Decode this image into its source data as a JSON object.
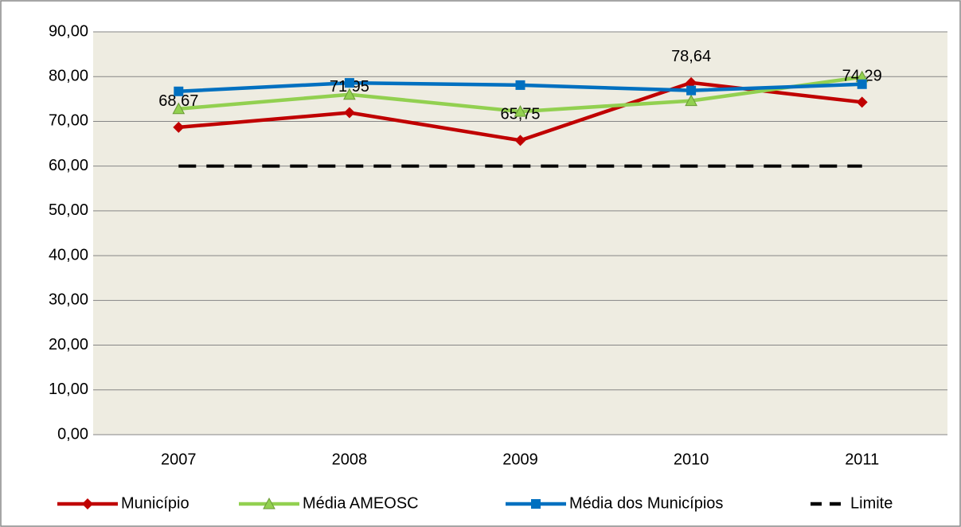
{
  "chart_data": {
    "type": "line",
    "categories": [
      "2007",
      "2008",
      "2009",
      "2010",
      "2011"
    ],
    "series": [
      {
        "name": "Município",
        "color": "#c00000",
        "marker": "diamond",
        "values": [
          68.67,
          71.95,
          65.75,
          78.64,
          74.29
        ],
        "value_labels": [
          "68,67",
          "71,95",
          "65,75",
          "78,64",
          "74,29"
        ]
      },
      {
        "name": "Média AMEOSC",
        "color": "#92d050",
        "marker": "triangle",
        "values": [
          72.8,
          76.0,
          72.2,
          74.6,
          79.9
        ]
      },
      {
        "name": "Média dos Municípios",
        "color": "#0070c0",
        "marker": "square",
        "values": [
          76.7,
          78.6,
          78.1,
          76.9,
          78.3
        ]
      },
      {
        "name": "Limite",
        "color": "#000000",
        "dashed": true,
        "values": [
          60,
          60,
          60,
          60,
          60
        ]
      }
    ],
    "ylim": [
      0,
      90
    ],
    "yticks": [
      {
        "value": 0,
        "label": "0,00"
      },
      {
        "value": 10,
        "label": "10,00"
      },
      {
        "value": 20,
        "label": "20,00"
      },
      {
        "value": 30,
        "label": "30,00"
      },
      {
        "value": 40,
        "label": "40,00"
      },
      {
        "value": 50,
        "label": "50,00"
      },
      {
        "value": 60,
        "label": "60,00"
      },
      {
        "value": 70,
        "label": "70,00"
      },
      {
        "value": 80,
        "label": "80,00"
      },
      {
        "value": 90,
        "label": "90,00"
      }
    ],
    "grid": true,
    "legend": "bottom",
    "plot_background": "#eeece1"
  }
}
